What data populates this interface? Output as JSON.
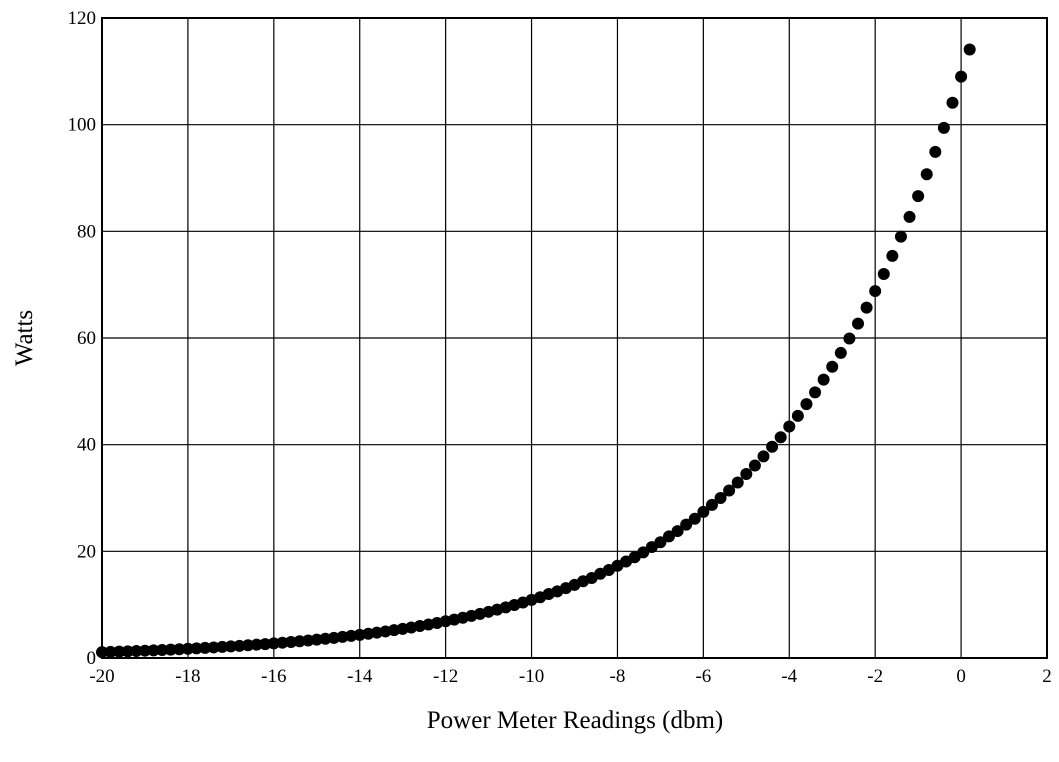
{
  "chart_data": {
    "type": "scatter",
    "x_label": "Power Meter Readings (dbm)",
    "y_label": "Watts",
    "x": [
      -20,
      -19.8,
      -19.6,
      -19.4,
      -19.2,
      -19,
      -18.8,
      -18.6,
      -18.4,
      -18.2,
      -18,
      -17.8,
      -17.6,
      -17.4,
      -17.2,
      -17,
      -16.8,
      -16.6,
      -16.4,
      -16.2,
      -16,
      -15.8,
      -15.6,
      -15.4,
      -15.2,
      -15,
      -14.8,
      -14.6,
      -14.4,
      -14.2,
      -14,
      -13.8,
      -13.6,
      -13.4,
      -13.2,
      -13,
      -12.8,
      -12.6,
      -12.4,
      -12.2,
      -12,
      -11.8,
      -11.6,
      -11.4,
      -11.2,
      -11,
      -10.8,
      -10.6,
      -10.4,
      -10.2,
      -10,
      -9.8,
      -9.6,
      -9.4,
      -9.2,
      -9,
      -8.8,
      -8.6,
      -8.4,
      -8.2,
      -8,
      -7.8,
      -7.6,
      -7.4,
      -7.2,
      -7,
      -6.8,
      -6.6,
      -6.4,
      -6.2,
      -6,
      -5.8,
      -5.6,
      -5.4,
      -5.2,
      -5,
      -4.8,
      -4.6,
      -4.4,
      -4.2,
      -4,
      -3.8,
      -3.6,
      -3.4,
      -3.2,
      -3,
      -2.8,
      -2.6,
      -2.4,
      -2.2,
      -2,
      -1.8,
      -1.6,
      -1.4,
      -1.2,
      -1,
      -0.8,
      -0.6,
      -0.4,
      -0.2,
      0,
      0.2
    ],
    "values": [
      1.09,
      1.14,
      1.2,
      1.25,
      1.31,
      1.37,
      1.44,
      1.5,
      1.58,
      1.65,
      1.73,
      1.81,
      1.89,
      1.98,
      2.08,
      2.17,
      2.28,
      2.38,
      2.5,
      2.61,
      2.74,
      2.87,
      3,
      3.14,
      3.29,
      3.45,
      3.61,
      3.78,
      3.96,
      4.14,
      4.34,
      4.54,
      4.76,
      4.98,
      5.22,
      5.46,
      5.72,
      5.99,
      6.27,
      6.57,
      6.88,
      7.2,
      7.54,
      7.9,
      8.27,
      8.66,
      9.07,
      9.49,
      9.94,
      10.41,
      10.9,
      11.4,
      12,
      12.5,
      13.1,
      13.7,
      14.4,
      15,
      15.8,
      16.5,
      17.3,
      18.1,
      18.9,
      19.8,
      20.8,
      21.7,
      22.8,
      23.8,
      25,
      26.1,
      27.4,
      28.7,
      30,
      31.4,
      32.9,
      34.5,
      36.1,
      37.8,
      39.6,
      41.4,
      43.4,
      45.4,
      47.6,
      49.8,
      52.2,
      54.6,
      57.2,
      59.9,
      62.7,
      65.7,
      68.8,
      72,
      75.4,
      79,
      82.7,
      86.6,
      90.7,
      94.9,
      99.4,
      104.1,
      109,
      114.1
    ],
    "color": "#000000",
    "xlim": [
      -20,
      2
    ],
    "xticks": [
      -20,
      -18,
      -16,
      -14,
      -12,
      -10,
      -8,
      -6,
      -4,
      -2,
      0,
      2
    ],
    "ylim": [
      0,
      120
    ],
    "yticks": [
      0,
      20,
      40,
      60,
      80,
      100,
      120
    ],
    "grid": true
  }
}
